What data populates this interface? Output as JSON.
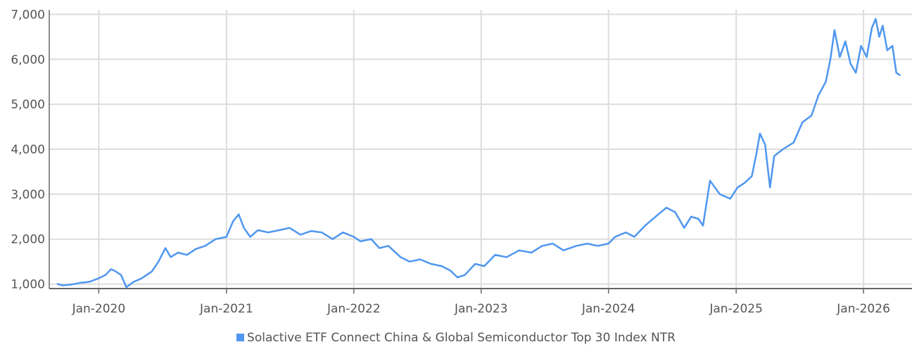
{
  "chart_data": {
    "type": "line",
    "title": "",
    "xlabel": "",
    "ylabel": "",
    "ylim": [
      900,
      7100
    ],
    "yticks": [
      1000,
      2000,
      3000,
      4000,
      5000,
      6000,
      7000
    ],
    "ytick_labels": [
      "1,000",
      "2,000",
      "3,000",
      "4,000",
      "5,000",
      "6,000",
      "7,000"
    ],
    "xlim": [
      "2019-08-12",
      "2026-05-20"
    ],
    "xticks": [
      "2020-01-01",
      "2021-01-01",
      "2022-01-01",
      "2023-01-01",
      "2024-01-01",
      "2025-01-01",
      "2026-01-01"
    ],
    "xtick_labels": [
      "Jan-2020",
      "Jan-2021",
      "Jan-2022",
      "Jan-2023",
      "Jan-2024",
      "Jan-2025",
      "Jan-2026"
    ],
    "grid": true,
    "legend_position": "bottom",
    "series": [
      {
        "name": "Solactive ETF Connect China & Global Semiconductor Top 30 Index NTR",
        "color": "#4f97ef",
        "x": [
          "2019-09-05",
          "2019-09-20",
          "2019-10-15",
          "2019-11-10",
          "2019-12-05",
          "2020-01-01",
          "2020-01-20",
          "2020-02-05",
          "2020-02-15",
          "2020-03-05",
          "2020-03-20",
          "2020-04-10",
          "2020-05-01",
          "2020-06-01",
          "2020-06-20",
          "2020-07-10",
          "2020-07-25",
          "2020-08-15",
          "2020-09-10",
          "2020-10-05",
          "2020-11-01",
          "2020-12-01",
          "2021-01-01",
          "2021-01-20",
          "2021-02-05",
          "2021-02-20",
          "2021-03-10",
          "2021-04-01",
          "2021-05-01",
          "2021-06-01",
          "2021-07-01",
          "2021-08-01",
          "2021-09-01",
          "2021-10-01",
          "2021-11-01",
          "2021-12-01",
          "2022-01-01",
          "2022-01-20",
          "2022-02-20",
          "2022-03-15",
          "2022-04-10",
          "2022-05-15",
          "2022-06-10",
          "2022-07-10",
          "2022-08-10",
          "2022-09-10",
          "2022-10-05",
          "2022-10-25",
          "2022-11-15",
          "2022-12-15",
          "2023-01-10",
          "2023-02-10",
          "2023-03-15",
          "2023-04-20",
          "2023-05-25",
          "2023-06-25",
          "2023-07-25",
          "2023-08-25",
          "2023-10-01",
          "2023-11-01",
          "2023-12-01",
          "2024-01-01",
          "2024-01-20",
          "2024-02-20",
          "2024-03-15",
          "2024-04-15",
          "2024-05-15",
          "2024-06-15",
          "2024-07-10",
          "2024-08-05",
          "2024-08-25",
          "2024-09-15",
          "2024-09-28",
          "2024-10-08",
          "2024-10-18",
          "2024-11-15",
          "2024-12-15",
          "2025-01-05",
          "2025-01-25",
          "2025-02-15",
          "2025-02-28",
          "2025-03-10",
          "2025-03-25",
          "2025-04-08",
          "2025-04-20",
          "2025-05-15",
          "2025-06-15",
          "2025-07-10",
          "2025-08-05",
          "2025-08-25",
          "2025-09-15",
          "2025-09-28",
          "2025-10-10",
          "2025-10-25",
          "2025-11-10",
          "2025-11-25",
          "2025-12-10",
          "2025-12-25",
          "2026-01-10",
          "2026-01-25",
          "2026-02-05",
          "2026-02-15",
          "2026-02-25",
          "2026-03-10",
          "2026-03-25",
          "2026-04-05",
          "2026-04-15"
        ],
        "y": [
          1000,
          970,
          990,
          1030,
          1050,
          1130,
          1200,
          1330,
          1300,
          1200,
          930,
          1050,
          1120,
          1280,
          1500,
          1800,
          1600,
          1700,
          1650,
          1780,
          1850,
          2000,
          2050,
          2400,
          2550,
          2250,
          2050,
          2200,
          2150,
          2200,
          2250,
          2100,
          2180,
          2150,
          2000,
          2150,
          2050,
          1950,
          2000,
          1800,
          1850,
          1600,
          1500,
          1550,
          1450,
          1400,
          1300,
          1150,
          1200,
          1450,
          1400,
          1650,
          1600,
          1750,
          1700,
          1850,
          1900,
          1750,
          1850,
          1900,
          1850,
          1900,
          2050,
          2150,
          2050,
          2300,
          2500,
          2700,
          2600,
          2250,
          2500,
          2450,
          2300,
          2800,
          3300,
          3000,
          2900,
          3150,
          3250,
          3400,
          3900,
          4350,
          4100,
          3150,
          3850,
          4000,
          4150,
          4600,
          4750,
          5200,
          5500,
          6000,
          6650,
          6050,
          6400,
          5900,
          5700,
          6300,
          6050,
          6700,
          6900,
          6500,
          6750,
          6200,
          6300,
          5700,
          5650
        ]
      }
    ]
  }
}
